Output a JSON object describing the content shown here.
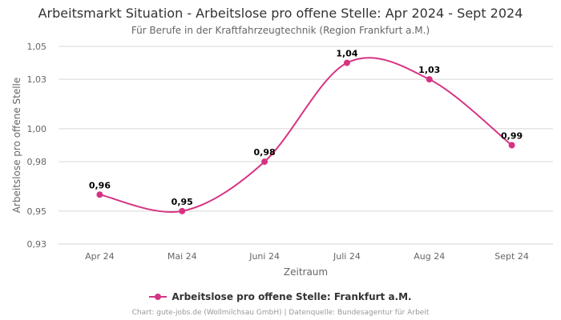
{
  "title": "Arbeitsmarkt Situation - Arbeitslose pro offene Stelle: Apr 2024 - Sept 2024",
  "subtitle": "Für Berufe in der Kraftfahrzeugtechnik (Region Frankfurt a.M.)",
  "credits": "Chart: gute-jobs.de (Wollmilchsau GmbH) | Datenquelle: Bundesagentur für Arbeit",
  "chart_data": {
    "type": "line",
    "title": "Arbeitsmarkt Situation - Arbeitslose pro offene Stelle: Apr 2024 - Sept 2024",
    "subtitle": "Für Berufe in der Kraftfahrzeugtechnik (Region Frankfurt a.M.)",
    "xlabel": "Zeitraum",
    "ylabel": "Arbeitslose pro offene Stelle",
    "categories": [
      "Apr 24",
      "Mai 24",
      "Juni 24",
      "Juli 24",
      "Aug 24",
      "Sept 24"
    ],
    "series": [
      {
        "name": "Arbeitslose pro offene Stelle: Frankfurt a.M.",
        "values": [
          0.96,
          0.95,
          0.98,
          1.04,
          1.03,
          0.99
        ],
        "labels": [
          "0,96",
          "0,95",
          "0,98",
          "1,04",
          "1,03",
          "0,99"
        ],
        "color": "#d63384"
      }
    ],
    "yticks": [
      0.93,
      0.95,
      0.98,
      1.0,
      1.03,
      1.05
    ],
    "ytick_labels": [
      "0,93",
      "0,95",
      "0,98",
      "1,00",
      "1,03",
      "1,05"
    ],
    "ylim": [
      0.93,
      1.05
    ],
    "grid": true,
    "legend": "bottom-center"
  }
}
